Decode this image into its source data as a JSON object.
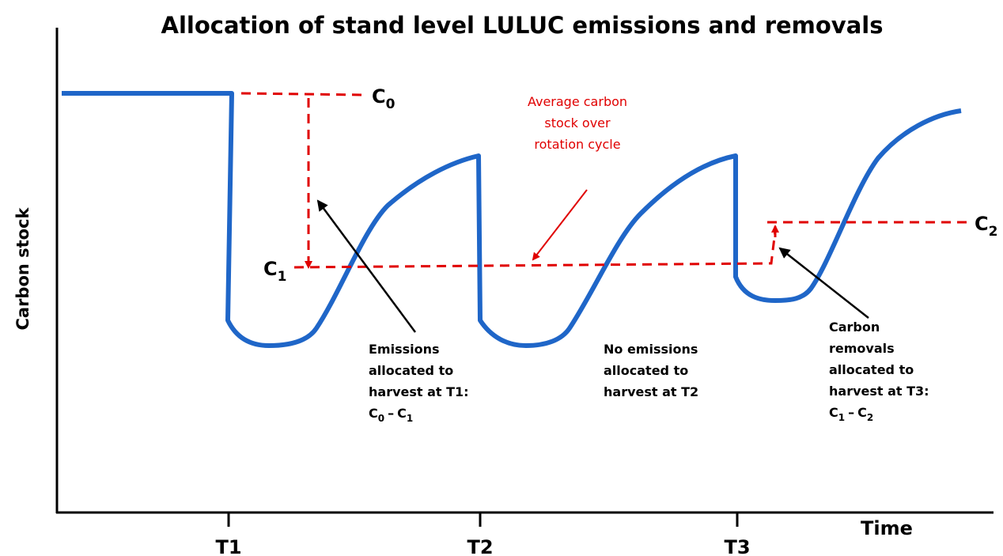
{
  "title": "Allocation of stand level LULUC emissions and removals",
  "y_axis_label": "Carbon stock",
  "x_axis_label": "Time",
  "time_ticks": [
    "T1",
    "T2",
    "T3"
  ],
  "levels": [
    {
      "letter": "C",
      "sub": "0"
    },
    {
      "letter": "C",
      "sub": "1"
    },
    {
      "letter": "C",
      "sub": "2"
    }
  ],
  "average_note": [
    "Average carbon",
    "stock over",
    "rotation cycle"
  ],
  "notes": [
    {
      "lines": [
        "Emissions",
        "allocated to",
        "harvest at T1:"
      ],
      "formula": [
        {
          "letter": "C",
          "sub": "0"
        },
        {
          "letter": "C",
          "sub": "1"
        }
      ],
      "operator": "–"
    },
    {
      "lines": [
        "No emissions",
        "allocated to",
        "harvest at T2"
      ]
    },
    {
      "lines": [
        "Carbon",
        "removals",
        "allocated to",
        "harvest at T3:"
      ],
      "formula": [
        {
          "letter": "C",
          "sub": "1"
        },
        {
          "letter": "C",
          "sub": "2"
        }
      ],
      "operator": "–"
    }
  ]
}
